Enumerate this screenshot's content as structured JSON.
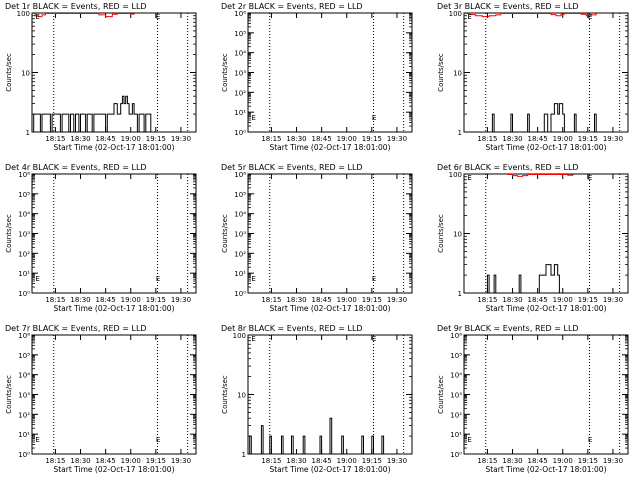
{
  "page": {
    "background": "#ffffff",
    "foreground": "#000000",
    "accent_red": "#ff0000"
  },
  "chart_data": [
    {
      "type": "line",
      "title": "Det 1r BLACK = Events, RED = LLD",
      "xlabel": "Start Time (02-Oct-17 18:01:00)",
      "ylabel": "Counts/sec",
      "xticks": [
        "18:15",
        "18:30",
        "18:45",
        "19:00",
        "19:15",
        "19:30"
      ],
      "yscale": "log",
      "ylim": [
        1,
        100
      ],
      "yticks": [
        "1",
        "10",
        "100"
      ],
      "xlim": [
        1801,
        1939
      ],
      "vlines": [
        1814,
        1916,
        1934
      ],
      "e_markers": [
        {
          "text": "E",
          "x": 1803,
          "y": 80
        },
        {
          "text": "E",
          "x": 1915,
          "y": 80
        }
      ],
      "series": [
        {
          "color": "#000000",
          "points": [
            [
              1801,
              1
            ],
            [
              1802,
              2
            ],
            [
              1806,
              1
            ],
            [
              1807,
              2
            ],
            [
              1812,
              1
            ],
            [
              1813,
              2
            ],
            [
              1818,
              1
            ],
            [
              1819,
              2
            ],
            [
              1823,
              1
            ],
            [
              1824,
              2
            ],
            [
              1826,
              1
            ],
            [
              1827,
              2
            ],
            [
              1829,
              1
            ],
            [
              1830,
              2
            ],
            [
              1833,
              1
            ],
            [
              1834,
              2
            ],
            [
              1837,
              1
            ],
            [
              1838,
              2
            ],
            [
              1845,
              1
            ],
            [
              1846,
              2
            ],
            [
              1848,
              2
            ],
            [
              1850,
              3
            ],
            [
              1852,
              2
            ],
            [
              1854,
              3
            ],
            [
              1855,
              4
            ],
            [
              1856,
              3
            ],
            [
              1857,
              4
            ],
            [
              1858,
              3
            ],
            [
              1859,
              2
            ],
            [
              1861,
              3
            ],
            [
              1862,
              2
            ],
            [
              1864,
              1
            ],
            [
              1865,
              2
            ],
            [
              1867,
              2
            ],
            [
              1868,
              1
            ],
            [
              1869,
              2
            ],
            [
              1872,
              1
            ]
          ]
        },
        {
          "color": "#ff0000",
          "points": [
            [
              1801,
              98
            ],
            [
              1803,
              90
            ],
            [
              1805,
              87
            ],
            [
              1807,
              93
            ],
            [
              1809,
              98
            ],
            [
              1838,
              98
            ],
            [
              1841,
              93
            ],
            [
              1845,
              87
            ],
            [
              1849,
              95
            ],
            [
              1852,
              98
            ],
            [
              1858,
              98
            ],
            [
              1860,
              96
            ],
            [
              1862,
              98
            ]
          ]
        }
      ]
    },
    {
      "type": "line",
      "title": "Det 2r BLACK = Events, RED = LLD",
      "xlabel": "Start Time (02-Oct-17 18:01:00)",
      "ylabel": "Counts/sec",
      "xticks": [
        "18:15",
        "18:30",
        "18:45",
        "19:00",
        "19:15",
        "19:30"
      ],
      "yscale": "log",
      "ylim": [
        1,
        1000000
      ],
      "yticks": [
        "10⁰",
        "10¹",
        "10²",
        "10³",
        "10⁴",
        "10⁵",
        "10⁶"
      ],
      "xlim": [
        1801,
        1939
      ],
      "vlines": [
        1814,
        1916,
        1934
      ],
      "e_markers": [
        {
          "text": "E",
          "x": 1803,
          "y": 4
        },
        {
          "text": "E",
          "x": 1915,
          "y": 4
        }
      ],
      "series": []
    },
    {
      "type": "line",
      "title": "Det 3r BLACK = Events, RED = LLD",
      "xlabel": "Start Time (02-Oct-17 18:01:00)",
      "ylabel": "Counts/sec",
      "xticks": [
        "18:15",
        "18:30",
        "18:45",
        "19:00",
        "19:15",
        "19:30"
      ],
      "yscale": "log",
      "ylim": [
        1,
        100
      ],
      "yticks": [
        "1",
        "10",
        "100"
      ],
      "xlim": [
        1801,
        1939
      ],
      "vlines": [
        1814,
        1916,
        1934
      ],
      "e_markers": [
        {
          "text": "E",
          "x": 1803,
          "y": 80
        },
        {
          "text": "E",
          "x": 1915,
          "y": 80
        }
      ],
      "series": [
        {
          "color": "#000000",
          "points": [
            [
              1817,
              1
            ],
            [
              1818,
              2
            ],
            [
              1819,
              1
            ],
            [
              1828,
              1
            ],
            [
              1829,
              2
            ],
            [
              1830,
              1
            ],
            [
              1838,
              1
            ],
            [
              1839,
              2
            ],
            [
              1840,
              1
            ],
            [
              1848,
              1
            ],
            [
              1849,
              2
            ],
            [
              1851,
              1
            ],
            [
              1853,
              2
            ],
            [
              1855,
              3
            ],
            [
              1857,
              2
            ],
            [
              1858,
              3
            ],
            [
              1860,
              2
            ],
            [
              1861,
              1
            ],
            [
              1866,
              1
            ],
            [
              1867,
              2
            ],
            [
              1868,
              1
            ],
            [
              1878,
              1
            ],
            [
              1879,
              2
            ],
            [
              1880,
              1
            ]
          ]
        },
        {
          "color": "#ff0000",
          "points": [
            [
              1801,
              98
            ],
            [
              1804,
              94
            ],
            [
              1808,
              90
            ],
            [
              1812,
              87
            ],
            [
              1816,
              90
            ],
            [
              1820,
              93
            ],
            [
              1823,
              98
            ],
            [
              1851,
              98
            ],
            [
              1853,
              94
            ],
            [
              1856,
              90
            ],
            [
              1859,
              95
            ],
            [
              1861,
              98
            ],
            [
              1868,
              98
            ],
            [
              1871,
              95
            ],
            [
              1874,
              90
            ],
            [
              1877,
              93
            ],
            [
              1880,
              98
            ]
          ]
        }
      ]
    },
    {
      "type": "line",
      "title": "Det 4r BLACK = Events, RED = LLD",
      "xlabel": "Start Time (02-Oct-17 18:01:00)",
      "ylabel": "Counts/sec",
      "xticks": [
        "18:15",
        "18:30",
        "18:45",
        "19:00",
        "19:15",
        "19:30"
      ],
      "yscale": "log",
      "ylim": [
        1,
        1000000
      ],
      "yticks": [
        "10⁰",
        "10¹",
        "10²",
        "10³",
        "10⁴",
        "10⁵",
        "10⁶"
      ],
      "xlim": [
        1801,
        1939
      ],
      "vlines": [
        1814,
        1916,
        1934
      ],
      "e_markers": [
        {
          "text": "E",
          "x": 1803,
          "y": 4
        },
        {
          "text": "E",
          "x": 1915,
          "y": 4
        }
      ],
      "series": []
    },
    {
      "type": "line",
      "title": "Det 5r BLACK = Events, RED = LLD",
      "xlabel": "Start Time (02-Oct-17 18:01:00)",
      "ylabel": "Counts/sec",
      "xticks": [
        "18:15",
        "18:30",
        "18:45",
        "19:00",
        "19:15",
        "19:30"
      ],
      "yscale": "log",
      "ylim": [
        1,
        1000000
      ],
      "yticks": [
        "10⁰",
        "10¹",
        "10²",
        "10³",
        "10⁴",
        "10⁵",
        "10⁶"
      ],
      "xlim": [
        1801,
        1939
      ],
      "vlines": [
        1814,
        1916,
        1934
      ],
      "e_markers": [
        {
          "text": "E",
          "x": 1803,
          "y": 4
        },
        {
          "text": "E",
          "x": 1915,
          "y": 4
        }
      ],
      "series": []
    },
    {
      "type": "line",
      "title": "Det 6r BLACK = Events, RED = LLD",
      "xlabel": "Start Time (02-Oct-17 18:01:00)",
      "ylabel": "Counts/sec",
      "xticks": [
        "18:15",
        "18:30",
        "18:45",
        "19:00",
        "19:15",
        "19:30"
      ],
      "yscale": "log",
      "ylim": [
        1,
        100
      ],
      "yticks": [
        "1",
        "10",
        "100"
      ],
      "xlim": [
        1801,
        1939
      ],
      "vlines": [
        1814,
        1916,
        1934
      ],
      "e_markers": [
        {
          "text": "E",
          "x": 1803,
          "y": 80
        },
        {
          "text": "E",
          "x": 1915,
          "y": 80
        }
      ],
      "series": [
        {
          "color": "#000000",
          "points": [
            [
              1814,
              1
            ],
            [
              1815,
              2
            ],
            [
              1816,
              1
            ],
            [
              1818,
              1
            ],
            [
              1819,
              2
            ],
            [
              1820,
              1
            ],
            [
              1833,
              1
            ],
            [
              1834,
              2
            ],
            [
              1835,
              1
            ],
            [
              1845,
              1
            ],
            [
              1846,
              2
            ],
            [
              1848,
              2
            ],
            [
              1850,
              3
            ],
            [
              1853,
              2
            ],
            [
              1855,
              3
            ],
            [
              1857,
              2
            ],
            [
              1858,
              1
            ]
          ]
        },
        {
          "color": "#ff0000",
          "points": [
            [
              1827,
              98
            ],
            [
              1830,
              94
            ],
            [
              1833,
              91
            ],
            [
              1836,
              94
            ],
            [
              1839,
              98
            ],
            [
              1861,
              98
            ],
            [
              1863,
              95
            ],
            [
              1866,
              98
            ]
          ]
        }
      ]
    },
    {
      "type": "line",
      "title": "Det 7r BLACK = Events, RED = LLD",
      "xlabel": "Start Time (02-Oct-17 18:01:00)",
      "ylabel": "Counts/sec",
      "xticks": [
        "18:15",
        "18:30",
        "18:45",
        "19:00",
        "19:15",
        "19:30"
      ],
      "yscale": "log",
      "ylim": [
        1,
        1000000
      ],
      "yticks": [
        "10⁰",
        "10¹",
        "10²",
        "10³",
        "10⁴",
        "10⁵",
        "10⁶"
      ],
      "xlim": [
        1801,
        1939
      ],
      "vlines": [
        1814,
        1916,
        1934
      ],
      "e_markers": [
        {
          "text": "E",
          "x": 1803,
          "y": 4
        },
        {
          "text": "E",
          "x": 1915,
          "y": 4
        }
      ],
      "series": []
    },
    {
      "type": "line",
      "title": "Det 8r BLACK = Events, RED = LLD",
      "xlabel": "Start Time (02-Oct-17 18:01:00)",
      "ylabel": "Counts/sec",
      "xticks": [
        "18:15",
        "18:30",
        "18:45",
        "19:00",
        "19:15",
        "19:30"
      ],
      "yscale": "log",
      "ylim": [
        1,
        100
      ],
      "yticks": [
        "1",
        "10",
        "100"
      ],
      "xlim": [
        1801,
        1939
      ],
      "vlines": [
        1814,
        1916,
        1934
      ],
      "e_markers": [
        {
          "text": "E",
          "x": 1803,
          "y": 80
        },
        {
          "text": "E",
          "x": 1915,
          "y": 80
        }
      ],
      "series": [
        {
          "color": "#000000",
          "points": [
            [
              1801,
              1
            ],
            [
              1802,
              2
            ],
            [
              1803,
              1
            ],
            [
              1808,
              1
            ],
            [
              1809,
              3
            ],
            [
              1810,
              1
            ],
            [
              1813,
              1
            ],
            [
              1814,
              2
            ],
            [
              1815,
              1
            ],
            [
              1820,
              1
            ],
            [
              1821,
              2
            ],
            [
              1822,
              1
            ],
            [
              1826,
              1
            ],
            [
              1827,
              2
            ],
            [
              1828,
              1
            ],
            [
              1833,
              1
            ],
            [
              1834,
              2
            ],
            [
              1835,
              1
            ],
            [
              1843,
              1
            ],
            [
              1844,
              2
            ],
            [
              1845,
              1
            ],
            [
              1849,
              1
            ],
            [
              1850,
              4
            ],
            [
              1851,
              1
            ],
            [
              1856,
              1
            ],
            [
              1857,
              2
            ],
            [
              1858,
              1
            ],
            [
              1868,
              1
            ],
            [
              1869,
              2
            ],
            [
              1870,
              1
            ],
            [
              1874,
              1
            ],
            [
              1875,
              2
            ],
            [
              1876,
              1
            ],
            [
              1880,
              1
            ],
            [
              1881,
              2
            ],
            [
              1882,
              1
            ]
          ]
        }
      ]
    },
    {
      "type": "line",
      "title": "Det 9r BLACK = Events, RED = LLD",
      "xlabel": "Start Time (02-Oct-17 18:01:00)",
      "ylabel": "Counts/sec",
      "xticks": [
        "18:15",
        "18:30",
        "18:45",
        "19:00",
        "19:15",
        "19:30"
      ],
      "yscale": "log",
      "ylim": [
        1,
        1000000
      ],
      "yticks": [
        "10⁰",
        "10¹",
        "10²",
        "10³",
        "10⁴",
        "10⁵",
        "10⁶"
      ],
      "xlim": [
        1801,
        1939
      ],
      "vlines": [
        1814,
        1916,
        1934
      ],
      "e_markers": [
        {
          "text": "E",
          "x": 1803,
          "y": 4
        },
        {
          "text": "E",
          "x": 1915,
          "y": 4
        }
      ],
      "series": []
    }
  ]
}
